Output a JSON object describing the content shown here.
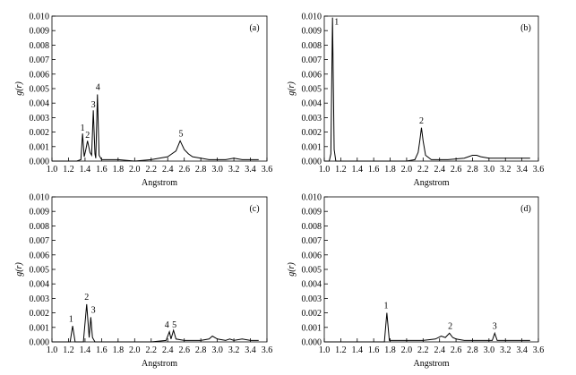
{
  "chart_data": [
    {
      "type": "line",
      "label": "(a)",
      "x_label": "Angstrom",
      "y_label": "g(r)",
      "xlim": [
        1.0,
        3.6
      ],
      "ylim": [
        0,
        0.01
      ],
      "xticks": [
        {
          "value": 1.0,
          "label": "1.0"
        },
        {
          "value": 1.2,
          "label": "1.2"
        },
        {
          "value": 1.4,
          "label": "1.4"
        },
        {
          "value": 1.6,
          "label": "1.6"
        },
        {
          "value": 1.8,
          "label": "1.8"
        },
        {
          "value": 2.0,
          "label": "2.0"
        },
        {
          "value": 2.2,
          "label": "2.2"
        },
        {
          "value": 2.4,
          "label": "2.4"
        },
        {
          "value": 2.6,
          "label": "2.6"
        },
        {
          "value": 2.8,
          "label": "2.8"
        },
        {
          "value": 3.0,
          "label": "3.0"
        },
        {
          "value": 3.2,
          "label": "3.2"
        },
        {
          "value": 3.4,
          "label": "3.4"
        },
        {
          "value": 3.6,
          "label": "3.6"
        }
      ],
      "yticks": [
        {
          "value": 0,
          "label": "0.000"
        },
        {
          "value": 0.001,
          "label": "0.001"
        },
        {
          "value": 0.002,
          "label": "0.002"
        },
        {
          "value": 0.003,
          "label": "0.003"
        },
        {
          "value": 0.004,
          "label": "0.004"
        },
        {
          "value": 0.005,
          "label": "0.005"
        },
        {
          "value": 0.006,
          "label": "0.006"
        },
        {
          "value": 0.007,
          "label": "0.007"
        },
        {
          "value": 0.008,
          "label": "0.008"
        },
        {
          "value": 0.009,
          "label": "0.009"
        },
        {
          "value": 0.01,
          "label": "0.010"
        }
      ],
      "color": "#000000",
      "x": [
        1.0,
        1.3,
        1.35,
        1.37,
        1.39,
        1.41,
        1.43,
        1.46,
        1.48,
        1.5,
        1.52,
        1.53,
        1.55,
        1.57,
        1.6,
        1.8,
        2.0,
        2.2,
        2.3,
        2.4,
        2.45,
        2.5,
        2.55,
        2.6,
        2.65,
        2.7,
        2.8,
        2.9,
        3.0,
        3.1,
        3.2,
        3.3,
        3.4,
        3.5
      ],
      "values": [
        0,
        0,
        0.0001,
        0.0019,
        0.0003,
        0.0008,
        0.0014,
        0.0006,
        0.0004,
        0.0035,
        0.0005,
        0.0002,
        0.0046,
        0.0004,
        0.0001,
        0.0001,
        0,
        0.0001,
        0.0002,
        0.0003,
        0.0005,
        0.0007,
        0.0014,
        0.0008,
        0.0005,
        0.0003,
        0.0002,
        0.0001,
        0.0001,
        0.0001,
        0.0002,
        0.0001,
        0.0001,
        0.0001
      ],
      "annotations": [
        {
          "text": "1",
          "x": 1.37,
          "y": 0.0021
        },
        {
          "text": "2",
          "x": 1.43,
          "y": 0.0016
        },
        {
          "text": "3",
          "x": 1.5,
          "y": 0.0037
        },
        {
          "text": "4",
          "x": 1.555,
          "y": 0.0049
        },
        {
          "text": "5",
          "x": 2.56,
          "y": 0.0017
        }
      ]
    },
    {
      "type": "line",
      "label": "(b)",
      "x_label": "Angstrom",
      "y_label": "g(r)",
      "xlim": [
        1.0,
        3.6
      ],
      "ylim": [
        0,
        0.01
      ],
      "xticks": [
        {
          "value": 1.0,
          "label": "1.0"
        },
        {
          "value": 1.2,
          "label": "1.2"
        },
        {
          "value": 1.4,
          "label": "1.4"
        },
        {
          "value": 1.6,
          "label": "1.6"
        },
        {
          "value": 1.8,
          "label": "1.8"
        },
        {
          "value": 2.0,
          "label": "2.0"
        },
        {
          "value": 2.2,
          "label": "2.2"
        },
        {
          "value": 2.4,
          "label": "2.4"
        },
        {
          "value": 2.6,
          "label": "2.6"
        },
        {
          "value": 2.8,
          "label": "2.8"
        },
        {
          "value": 3.0,
          "label": "3.0"
        },
        {
          "value": 3.2,
          "label": "3.2"
        },
        {
          "value": 3.4,
          "label": "3.4"
        },
        {
          "value": 3.6,
          "label": "3.6"
        }
      ],
      "yticks": [
        {
          "value": 0,
          "label": "0.000"
        },
        {
          "value": 0.001,
          "label": "0.001"
        },
        {
          "value": 0.002,
          "label": "0.002"
        },
        {
          "value": 0.003,
          "label": "0.003"
        },
        {
          "value": 0.004,
          "label": "0.004"
        },
        {
          "value": 0.005,
          "label": "0.005"
        },
        {
          "value": 0.006,
          "label": "0.006"
        },
        {
          "value": 0.007,
          "label": "0.007"
        },
        {
          "value": 0.008,
          "label": "0.008"
        },
        {
          "value": 0.009,
          "label": "0.009"
        },
        {
          "value": 0.01,
          "label": "0.010"
        }
      ],
      "color": "#000000",
      "x": [
        1.0,
        1.06,
        1.08,
        1.1,
        1.12,
        1.14,
        1.5,
        2.0,
        2.1,
        2.14,
        2.16,
        2.18,
        2.2,
        2.23,
        2.3,
        2.5,
        2.7,
        2.8,
        2.85,
        2.9,
        3.0,
        3.2,
        3.4,
        3.5
      ],
      "values": [
        0,
        0,
        0.0005,
        0.0099,
        0.0008,
        0,
        0,
        0,
        0.0001,
        0.0006,
        0.0014,
        0.0023,
        0.0014,
        0.0004,
        0.0001,
        0.0001,
        0.0002,
        0.0004,
        0.0004,
        0.0003,
        0.0002,
        0.0002,
        0.0002,
        0.0002
      ],
      "annotations": [
        {
          "text": "1",
          "x": 1.15,
          "y": 0.0094
        },
        {
          "text": "2",
          "x": 2.18,
          "y": 0.0026
        }
      ]
    },
    {
      "type": "line",
      "label": "(c)",
      "x_label": "Angstrom",
      "y_label": "g(r)",
      "xlim": [
        1.0,
        3.6
      ],
      "ylim": [
        0,
        0.01
      ],
      "xticks": [
        {
          "value": 1.0,
          "label": "1.0"
        },
        {
          "value": 1.2,
          "label": "1.2"
        },
        {
          "value": 1.4,
          "label": "1.4"
        },
        {
          "value": 1.6,
          "label": "1.6"
        },
        {
          "value": 1.8,
          "label": "1.8"
        },
        {
          "value": 2.0,
          "label": "2.0"
        },
        {
          "value": 2.2,
          "label": "2.2"
        },
        {
          "value": 2.4,
          "label": "2.4"
        },
        {
          "value": 2.6,
          "label": "2.6"
        },
        {
          "value": 2.8,
          "label": "2.8"
        },
        {
          "value": 3.0,
          "label": "3.0"
        },
        {
          "value": 3.2,
          "label": "3.2"
        },
        {
          "value": 3.4,
          "label": "3.4"
        },
        {
          "value": 3.6,
          "label": "3.6"
        }
      ],
      "yticks": [
        {
          "value": 0,
          "label": "0.000"
        },
        {
          "value": 0.001,
          "label": "0.001"
        },
        {
          "value": 0.002,
          "label": "0.002"
        },
        {
          "value": 0.003,
          "label": "0.003"
        },
        {
          "value": 0.004,
          "label": "0.004"
        },
        {
          "value": 0.005,
          "label": "0.005"
        },
        {
          "value": 0.006,
          "label": "0.006"
        },
        {
          "value": 0.007,
          "label": "0.007"
        },
        {
          "value": 0.008,
          "label": "0.008"
        },
        {
          "value": 0.009,
          "label": "0.009"
        },
        {
          "value": 0.01,
          "label": "0.010"
        }
      ],
      "color": "#000000",
      "x": [
        1.0,
        1.22,
        1.25,
        1.28,
        1.38,
        1.42,
        1.45,
        1.47,
        1.49,
        1.52,
        1.8,
        2.2,
        2.38,
        2.42,
        2.44,
        2.47,
        2.5,
        2.6,
        2.8,
        2.9,
        2.94,
        3.0,
        3.1,
        3.15,
        3.2,
        3.3,
        3.4,
        3.5
      ],
      "values": [
        0,
        0,
        0.0011,
        0,
        0,
        0.0026,
        0.0003,
        0.0017,
        0.0003,
        0,
        0,
        0,
        0.0001,
        0.0007,
        0.0002,
        0.0008,
        0.0002,
        0.0001,
        0.0001,
        0.0002,
        0.0004,
        0.0002,
        0.0001,
        0.0002,
        0.0001,
        0.0002,
        0.0001,
        0.0001
      ],
      "annotations": [
        {
          "text": "1",
          "x": 1.23,
          "y": 0.0014
        },
        {
          "text": "2",
          "x": 1.42,
          "y": 0.0029
        },
        {
          "text": "3",
          "x": 1.5,
          "y": 0.002
        },
        {
          "text": "4",
          "x": 2.39,
          "y": 0.001
        },
        {
          "text": "5",
          "x": 2.48,
          "y": 0.001
        }
      ]
    },
    {
      "type": "line",
      "label": "(d)",
      "x_label": "Angstrom",
      "y_label": "g(r)",
      "xlim": [
        1.0,
        3.6
      ],
      "ylim": [
        0,
        0.01
      ],
      "xticks": [
        {
          "value": 1.0,
          "label": "1.0"
        },
        {
          "value": 1.2,
          "label": "1.2"
        },
        {
          "value": 1.4,
          "label": "1.4"
        },
        {
          "value": 1.6,
          "label": "1.6"
        },
        {
          "value": 1.8,
          "label": "1.8"
        },
        {
          "value": 2.0,
          "label": "2.0"
        },
        {
          "value": 2.2,
          "label": "2.2"
        },
        {
          "value": 2.4,
          "label": "2.4"
        },
        {
          "value": 2.6,
          "label": "2.6"
        },
        {
          "value": 2.8,
          "label": "2.8"
        },
        {
          "value": 3.0,
          "label": "3.0"
        },
        {
          "value": 3.2,
          "label": "3.2"
        },
        {
          "value": 3.4,
          "label": "3.4"
        },
        {
          "value": 3.6,
          "label": "3.6"
        }
      ],
      "yticks": [
        {
          "value": 0,
          "label": "0.000"
        },
        {
          "value": 0.001,
          "label": "0.001"
        },
        {
          "value": 0.002,
          "label": "0.002"
        },
        {
          "value": 0.003,
          "label": "0.003"
        },
        {
          "value": 0.004,
          "label": "0.004"
        },
        {
          "value": 0.005,
          "label": "0.005"
        },
        {
          "value": 0.006,
          "label": "0.006"
        },
        {
          "value": 0.007,
          "label": "0.007"
        },
        {
          "value": 0.008,
          "label": "0.008"
        },
        {
          "value": 0.009,
          "label": "0.009"
        },
        {
          "value": 0.01,
          "label": "0.010"
        }
      ],
      "color": "#000000",
      "x": [
        1.0,
        1.73,
        1.76,
        1.79,
        2.0,
        2.2,
        2.35,
        2.42,
        2.47,
        2.52,
        2.56,
        2.6,
        2.7,
        2.9,
        3.04,
        3.07,
        3.1,
        3.3,
        3.5
      ],
      "values": [
        0,
        0,
        0.002,
        0.0001,
        0.0001,
        0.0001,
        0.0002,
        0.0004,
        0.0003,
        0.0006,
        0.0003,
        0.0002,
        0.0001,
        0.0001,
        0.0001,
        0.0006,
        0.0001,
        0.0001,
        0.0001
      ],
      "annotations": [
        {
          "text": "1",
          "x": 1.75,
          "y": 0.0023
        },
        {
          "text": "2",
          "x": 2.53,
          "y": 0.0009
        },
        {
          "text": "3",
          "x": 3.07,
          "y": 0.0009
        }
      ]
    }
  ]
}
